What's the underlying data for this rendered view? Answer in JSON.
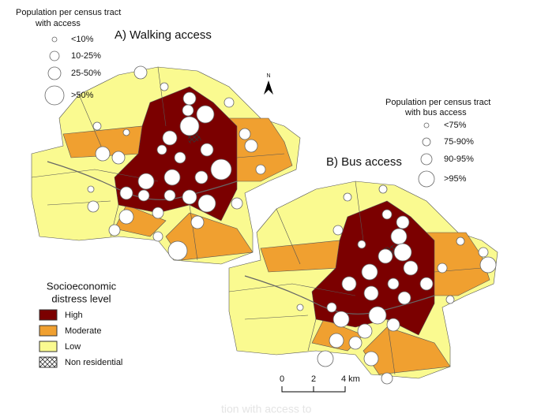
{
  "walking_legend": {
    "title_lines": [
      "Population per census tract",
      "with access"
    ],
    "items": [
      "<10%",
      "10-25%",
      "25-50%",
      ">50%"
    ]
  },
  "map_a_title": "A) Walking access",
  "north": "N",
  "bus_legend": {
    "title_lines": [
      "Population per census tract",
      "with bus access"
    ],
    "items": [
      "<75%",
      "75-90%",
      "90-95%",
      ">95%"
    ]
  },
  "map_b_title": "B) Bus access",
  "distress_legend": {
    "title_lines": [
      "Socioeconomic",
      "distress level"
    ],
    "items": [
      "High",
      "Moderate",
      "Low",
      "Non residential"
    ]
  },
  "scale_bar": {
    "labels": [
      "0",
      "2",
      "4 km"
    ]
  },
  "caption_fragment": "tion with access to"
}
